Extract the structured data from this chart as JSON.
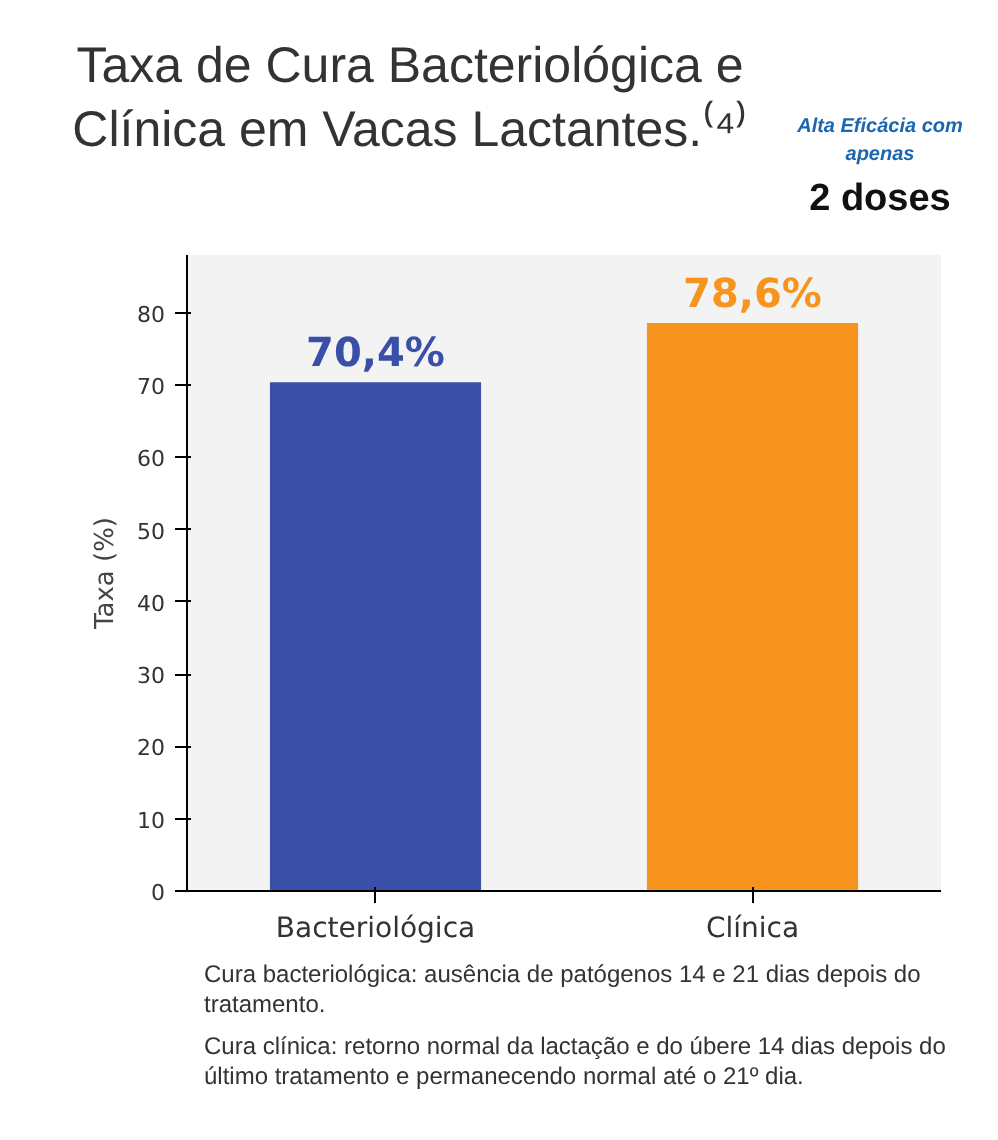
{
  "chart_data": {
    "type": "bar",
    "title": "Taxa de Cura Bacteriológica e Clínica em Vacas Lactantes.⁽⁴⁾",
    "categories": [
      "Bacteriológica",
      "Clínica"
    ],
    "values": [
      70.4,
      78.6
    ],
    "colors": [
      "#3a4fa8",
      "#f7941d"
    ],
    "value_labels": [
      "70,4%",
      "78,6%"
    ],
    "ylabel": "Taxa (%)",
    "ylim": [
      0,
      88
    ],
    "yticks": [
      0,
      10,
      20,
      30,
      40,
      50,
      60,
      70,
      80
    ],
    "grid": false,
    "annotations": [
      "Alta Eficácia com apenas",
      "2 doses",
      "Cura bacteriológica: ausência de patógenos 14 e 21 dias depois do tratamento.",
      "Cura clínica: retorno normal da lactação e do úbere 14 dias depois do último tratamento e permanecendo normal até o 21º dia."
    ]
  }
}
